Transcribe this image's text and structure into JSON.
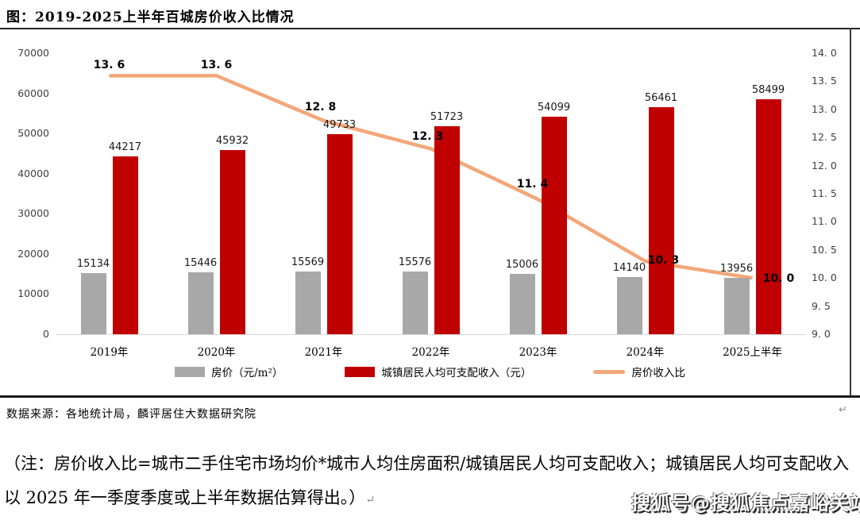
{
  "header": {
    "title": "图：2019-2025上半年百城房价收入比情况"
  },
  "chart_data": {
    "type": "combo-bar-line",
    "categories": [
      "2019年",
      "2020年",
      "2021年",
      "2022年",
      "2023年",
      "2024年",
      "2025上半年"
    ],
    "series": [
      {
        "name": "房价（元/m²）",
        "type": "bar",
        "axis": "left",
        "color": "#a8a8a8",
        "values": [
          15134,
          15446,
          15569,
          15576,
          15006,
          14140,
          13956
        ]
      },
      {
        "name": "城镇居民人均可支配收入（元）",
        "type": "bar",
        "axis": "left",
        "color": "#c00000",
        "values": [
          44217,
          45932,
          49733,
          51723,
          54099,
          56461,
          58499
        ]
      },
      {
        "name": "房价收入比",
        "type": "line",
        "axis": "right",
        "color": "#f3a678",
        "values": [
          13.6,
          13.6,
          12.8,
          12.3,
          11.4,
          10.3,
          10.0
        ],
        "labels": [
          "13. 6",
          "13. 6",
          "12. 8",
          "12. 3",
          "11. 4",
          "10. 3",
          "10. 0"
        ]
      }
    ],
    "left_axis": {
      "min": 0,
      "max": 70000,
      "step": 10000,
      "ticks": [
        "0",
        "10000",
        "20000",
        "30000",
        "40000",
        "50000",
        "60000",
        "70000"
      ]
    },
    "right_axis": {
      "min": 9,
      "max": 14,
      "step": 0.5,
      "ticks": [
        "9. 0",
        "9. 5",
        "10. 0",
        "10. 5",
        "11. 0",
        "11. 5",
        "12. 0",
        "12. 5",
        "13. 0",
        "13. 5",
        "14. 0"
      ]
    },
    "grid": "off",
    "legend_position": "bottom"
  },
  "footer": {
    "source": "数据来源：各地统计局，麟评居住大数据研究院",
    "note": "（注：房价收入比=城市二手住宅市场均价*城市人均住房面积/城镇居民人均可支配收入；城镇居民人均可支配收入以 2025 年一季度季度或上半年数据估算得出。）",
    "return_mark": "↵",
    "watermark": "搜狐号@搜狐焦点嘉峪关站"
  }
}
